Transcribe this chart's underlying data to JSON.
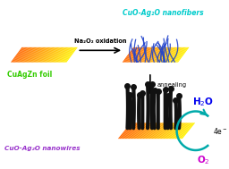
{
  "bg_color": "#ffffff",
  "label_nanofibers": "CuO-Ag₂O nanofibers",
  "label_nanofibers_color": "#00cccc",
  "label_cuagzn": "CuAgZn foil",
  "label_cuagzn_color": "#33cc00",
  "label_nanowires": "CuO-Ag₂O nanowires",
  "label_nanowires_color": "#9933cc",
  "arrow1_label": "Na₂O₂ oxidation",
  "arrow2_label": "annealing",
  "h2o_color": "#0000ee",
  "o2_color": "#cc00cc",
  "e_color": "#000000",
  "arc_color": "#00aaaa",
  "nanowire_color": "#111111",
  "nanofiber_color": "#2244cc"
}
